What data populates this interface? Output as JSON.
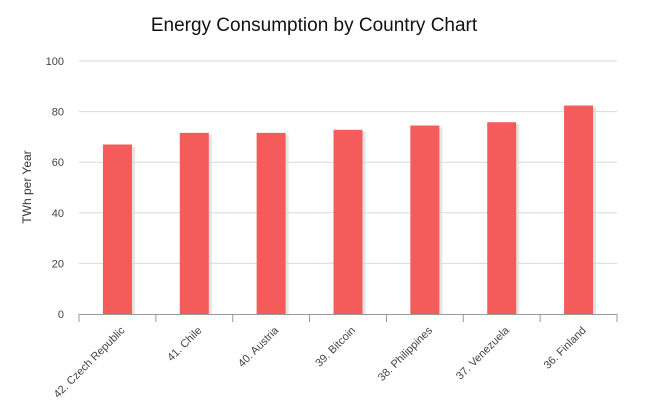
{
  "chart_data": {
    "type": "bar",
    "title": "Energy Consumption by Country Chart",
    "xlabel": "",
    "ylabel": "TWh per Year",
    "categories": [
      "42. Czech Republic",
      "41. Chile",
      "40. Austria",
      "39. Bitcoin",
      "38. Philippines",
      "37. Venezuela",
      "36. Finland"
    ],
    "values": [
      67.0,
      71.6,
      71.6,
      72.8,
      74.5,
      75.8,
      82.4
    ],
    "ylim": [
      0,
      100
    ],
    "yticks": [
      "0",
      "20",
      "40",
      "60",
      "80",
      "100"
    ],
    "grid": true,
    "legend": "none",
    "colors": {
      "bar": "#f45b5b",
      "shadow": "#d8d8d8",
      "grid": "#d9d9d9",
      "axis": "#999999"
    }
  }
}
